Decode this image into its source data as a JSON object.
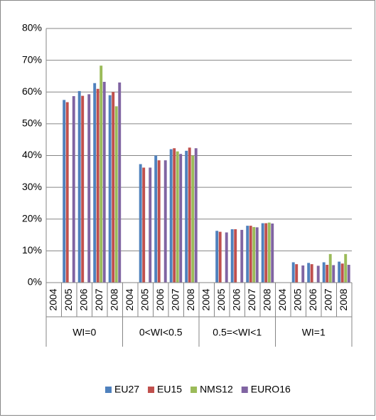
{
  "chart_data": {
    "type": "bar",
    "categories": [
      "2004",
      "2005",
      "2006",
      "2007",
      "2008",
      "2004",
      "2005",
      "2006",
      "2007",
      "2008",
      "2004",
      "2005",
      "2006",
      "2007",
      "2008",
      "2004",
      "2005",
      "2006",
      "2007",
      "2008"
    ],
    "category_groups": [
      "WI=0",
      "0<WI<0.5",
      "0.5=<WI<1",
      "WI=1"
    ],
    "series": [
      {
        "name": "EU27",
        "color": "#4f81bd",
        "values": [
          null,
          57.5,
          60.3,
          62.8,
          59,
          null,
          37.3,
          40,
          42,
          41.5,
          null,
          16.3,
          16.8,
          17.9,
          18.7,
          null,
          6.4,
          6.2,
          6.4,
          6.6
        ]
      },
      {
        "name": "EU15",
        "color": "#c0504d",
        "values": [
          null,
          56.8,
          58.8,
          61,
          60,
          null,
          36.2,
          38.5,
          42.3,
          42.5,
          null,
          16,
          16.8,
          17.9,
          18.7,
          null,
          5.8,
          5.8,
          5.6,
          6
        ]
      },
      {
        "name": "NMS12",
        "color": "#9bbb59",
        "values": [
          null,
          null,
          null,
          68.3,
          55.5,
          null,
          null,
          null,
          41.3,
          40,
          null,
          null,
          null,
          17.5,
          18.9,
          null,
          null,
          null,
          9,
          9
        ]
      },
      {
        "name": "EURO16",
        "color": "#8064a2",
        "values": [
          null,
          58.7,
          59.3,
          63.2,
          63,
          null,
          36.2,
          38.5,
          40.5,
          42.3,
          null,
          15.8,
          16.6,
          17.4,
          18.6,
          null,
          5.4,
          5.3,
          5.5,
          5.6
        ]
      }
    ],
    "ylim": [
      0,
      80
    ],
    "yticks": [
      {
        "value": 0,
        "label": "0%"
      },
      {
        "value": 10,
        "label": "10%"
      },
      {
        "value": 20,
        "label": "20%"
      },
      {
        "value": 30,
        "label": "30%"
      },
      {
        "value": 40,
        "label": "40%"
      },
      {
        "value": 50,
        "label": "50%"
      },
      {
        "value": 60,
        "label": "60%"
      },
      {
        "value": 70,
        "label": "70%"
      },
      {
        "value": 80,
        "label": "80%"
      }
    ],
    "grid": true,
    "legend": "bottom"
  }
}
